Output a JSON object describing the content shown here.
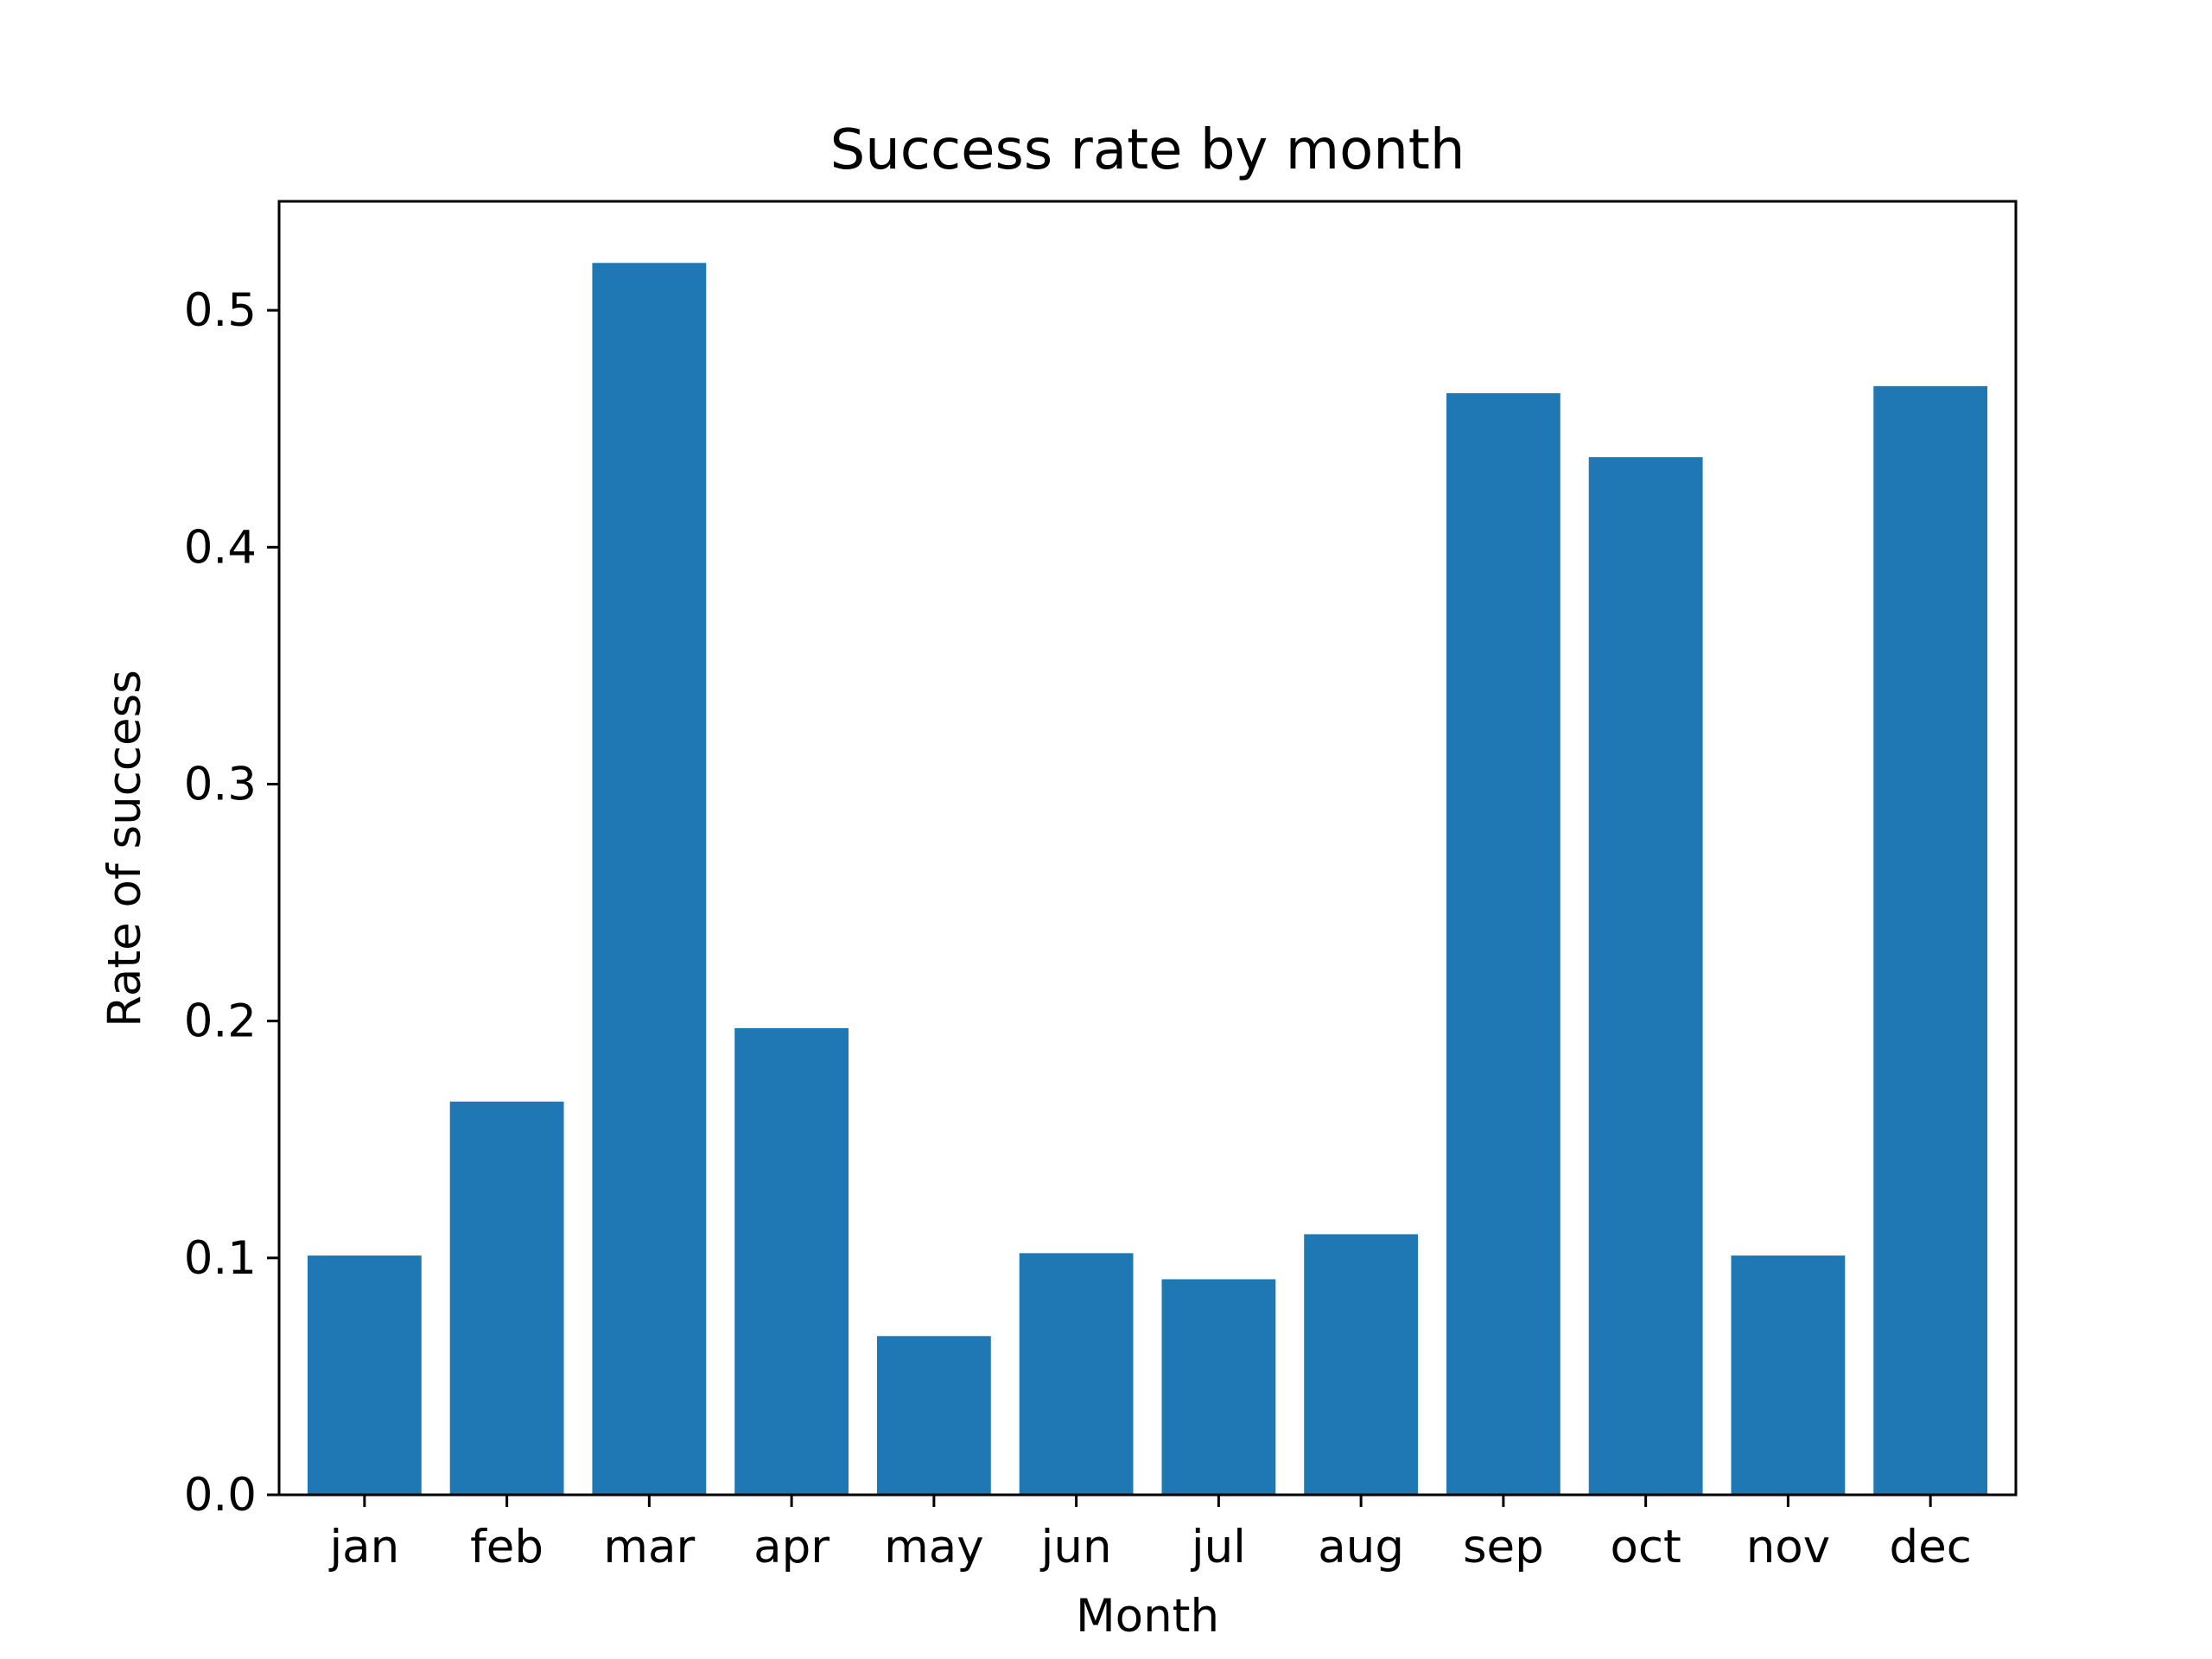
{
  "chart_data": {
    "type": "bar",
    "title": "Success rate by month",
    "xlabel": "Month",
    "ylabel": "Rate of success",
    "categories": [
      "jan",
      "feb",
      "mar",
      "apr",
      "may",
      "jun",
      "jul",
      "aug",
      "sep",
      "oct",
      "nov",
      "dec"
    ],
    "values": [
      0.101,
      0.166,
      0.52,
      0.197,
      0.067,
      0.102,
      0.091,
      0.11,
      0.465,
      0.438,
      0.101,
      0.468
    ],
    "ylim": [
      0.0,
      0.546
    ],
    "yticks": [
      0.0,
      0.1,
      0.2,
      0.3,
      0.4,
      0.5
    ],
    "ytick_labels": [
      "0.0",
      "0.1",
      "0.2",
      "0.3",
      "0.4",
      "0.5"
    ],
    "bar_color": "#1f77b4",
    "grid": false,
    "legend": "none"
  }
}
